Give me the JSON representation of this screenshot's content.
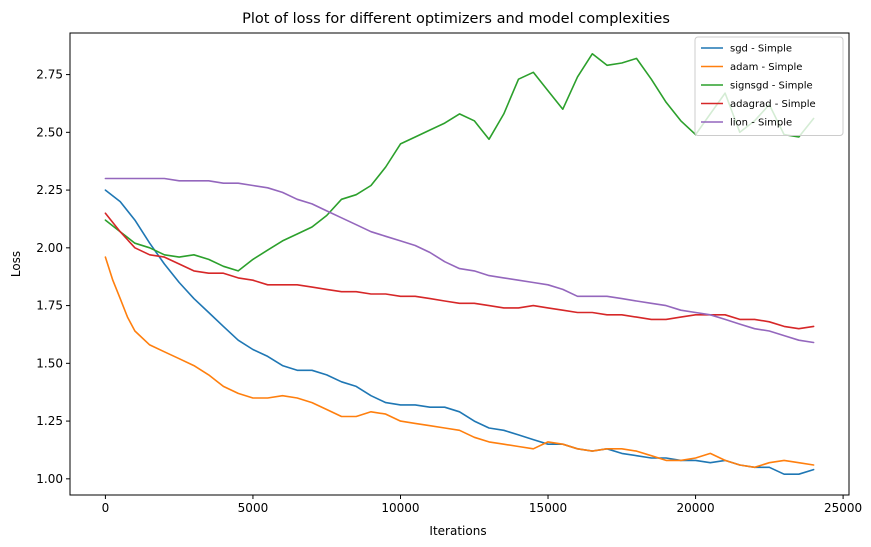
{
  "chart_data": {
    "type": "line",
    "title": "Plot of loss for different optimizers and model complexities",
    "xlabel": "Iterations",
    "ylabel": "Loss",
    "xlim": [
      -1200,
      25200
    ],
    "ylim": [
      0.93,
      2.93
    ],
    "x_ticks": [
      0,
      5000,
      10000,
      15000,
      20000,
      25000
    ],
    "x_tick_labels": [
      "0",
      "5000",
      "10000",
      "15000",
      "20000",
      "25000"
    ],
    "y_ticks": [
      1.0,
      1.25,
      1.5,
      1.75,
      2.0,
      2.25,
      2.5,
      2.75
    ],
    "y_tick_labels": [
      "1.00",
      "1.25",
      "1.50",
      "1.75",
      "2.00",
      "2.25",
      "2.50",
      "2.75"
    ],
    "grid": false,
    "legend_position": "top-right",
    "series": [
      {
        "name": "sgd - Simple",
        "color": "#1f77b4",
        "x": [
          0,
          500,
          1000,
          1500,
          2000,
          2500,
          3000,
          3500,
          4000,
          4500,
          5000,
          5500,
          6000,
          6500,
          7000,
          7500,
          8000,
          8500,
          9000,
          9500,
          10000,
          10500,
          11000,
          11500,
          12000,
          12500,
          13000,
          13500,
          14000,
          14500,
          15000,
          15500,
          16000,
          16500,
          17000,
          17500,
          18000,
          18500,
          19000,
          19500,
          20000,
          20500,
          21000,
          21500,
          22000,
          22500,
          23000,
          23500,
          24000
        ],
        "y": [
          2.25,
          2.2,
          2.12,
          2.02,
          1.93,
          1.85,
          1.78,
          1.72,
          1.66,
          1.6,
          1.56,
          1.53,
          1.49,
          1.47,
          1.47,
          1.45,
          1.42,
          1.4,
          1.36,
          1.33,
          1.32,
          1.32,
          1.31,
          1.31,
          1.29,
          1.25,
          1.22,
          1.21,
          1.19,
          1.17,
          1.15,
          1.15,
          1.13,
          1.12,
          1.13,
          1.11,
          1.1,
          1.09,
          1.09,
          1.08,
          1.08,
          1.07,
          1.08,
          1.06,
          1.05,
          1.05,
          1.02,
          1.02,
          1.04
        ]
      },
      {
        "name": "adam - Simple",
        "color": "#ff7f0e",
        "x": [
          0,
          250,
          500,
          750,
          1000,
          1500,
          2000,
          2500,
          3000,
          3500,
          4000,
          4500,
          5000,
          5500,
          6000,
          6500,
          7000,
          7500,
          8000,
          8500,
          9000,
          9500,
          10000,
          10500,
          11000,
          11500,
          12000,
          12500,
          13000,
          13500,
          14000,
          14500,
          15000,
          15500,
          16000,
          16500,
          17000,
          17500,
          18000,
          18500,
          19000,
          19500,
          20000,
          20500,
          21000,
          21500,
          22000,
          22500,
          23000,
          23500,
          24000
        ],
        "y": [
          1.96,
          1.86,
          1.78,
          1.7,
          1.64,
          1.58,
          1.55,
          1.52,
          1.49,
          1.45,
          1.4,
          1.37,
          1.35,
          1.35,
          1.36,
          1.35,
          1.33,
          1.3,
          1.27,
          1.27,
          1.29,
          1.28,
          1.25,
          1.24,
          1.23,
          1.22,
          1.21,
          1.18,
          1.16,
          1.15,
          1.14,
          1.13,
          1.16,
          1.15,
          1.13,
          1.12,
          1.13,
          1.13,
          1.12,
          1.1,
          1.08,
          1.08,
          1.09,
          1.11,
          1.08,
          1.06,
          1.05,
          1.07,
          1.08,
          1.07,
          1.06
        ]
      },
      {
        "name": "signsgd - Simple",
        "color": "#2ca02c",
        "x": [
          0,
          500,
          1000,
          1500,
          2000,
          2500,
          3000,
          3500,
          4000,
          4500,
          5000,
          5500,
          6000,
          6500,
          7000,
          7500,
          8000,
          8500,
          9000,
          9500,
          10000,
          10500,
          11000,
          11500,
          12000,
          12500,
          13000,
          13500,
          14000,
          14500,
          15000,
          15500,
          16000,
          16500,
          17000,
          17500,
          18000,
          18500,
          19000,
          19500,
          20000,
          20500,
          21000,
          21500,
          22000,
          22500,
          23000,
          23500,
          24000
        ],
        "y": [
          2.12,
          2.07,
          2.02,
          2.0,
          1.97,
          1.96,
          1.97,
          1.95,
          1.92,
          1.9,
          1.95,
          1.99,
          2.03,
          2.06,
          2.09,
          2.14,
          2.21,
          2.23,
          2.27,
          2.35,
          2.45,
          2.48,
          2.51,
          2.54,
          2.58,
          2.55,
          2.47,
          2.58,
          2.73,
          2.76,
          2.68,
          2.6,
          2.74,
          2.84,
          2.79,
          2.8,
          2.82,
          2.73,
          2.63,
          2.55,
          2.49,
          2.58,
          2.67,
          2.5,
          2.55,
          2.62,
          2.49,
          2.48,
          2.56
        ]
      },
      {
        "name": "adagrad - Simple",
        "color": "#d62728",
        "x": [
          0,
          500,
          1000,
          1500,
          2000,
          2500,
          3000,
          3500,
          4000,
          4500,
          5000,
          5500,
          6000,
          6500,
          7000,
          7500,
          8000,
          8500,
          9000,
          9500,
          10000,
          10500,
          11000,
          11500,
          12000,
          12500,
          13000,
          13500,
          14000,
          14500,
          15000,
          15500,
          16000,
          16500,
          17000,
          17500,
          18000,
          18500,
          19000,
          19500,
          20000,
          20500,
          21000,
          21500,
          22000,
          22500,
          23000,
          23500,
          24000
        ],
        "y": [
          2.15,
          2.07,
          2.0,
          1.97,
          1.96,
          1.93,
          1.9,
          1.89,
          1.89,
          1.87,
          1.86,
          1.84,
          1.84,
          1.84,
          1.83,
          1.82,
          1.81,
          1.81,
          1.8,
          1.8,
          1.79,
          1.79,
          1.78,
          1.77,
          1.76,
          1.76,
          1.75,
          1.74,
          1.74,
          1.75,
          1.74,
          1.73,
          1.72,
          1.72,
          1.71,
          1.71,
          1.7,
          1.69,
          1.69,
          1.7,
          1.71,
          1.71,
          1.71,
          1.69,
          1.69,
          1.68,
          1.66,
          1.65,
          1.66
        ]
      },
      {
        "name": "lion - Simple",
        "color": "#9467bd",
        "x": [
          0,
          500,
          1000,
          1500,
          2000,
          2500,
          3000,
          3500,
          4000,
          4500,
          5000,
          5500,
          6000,
          6500,
          7000,
          7500,
          8000,
          8500,
          9000,
          9500,
          10000,
          10500,
          11000,
          11500,
          12000,
          12500,
          13000,
          13500,
          14000,
          14500,
          15000,
          15500,
          16000,
          16500,
          17000,
          17500,
          18000,
          18500,
          19000,
          19500,
          20000,
          20500,
          21000,
          21500,
          22000,
          22500,
          23000,
          23500,
          24000
        ],
        "y": [
          2.3,
          2.3,
          2.3,
          2.3,
          2.3,
          2.29,
          2.29,
          2.29,
          2.28,
          2.28,
          2.27,
          2.26,
          2.24,
          2.21,
          2.19,
          2.16,
          2.13,
          2.1,
          2.07,
          2.05,
          2.03,
          2.01,
          1.98,
          1.94,
          1.91,
          1.9,
          1.88,
          1.87,
          1.86,
          1.85,
          1.84,
          1.82,
          1.79,
          1.79,
          1.79,
          1.78,
          1.77,
          1.76,
          1.75,
          1.73,
          1.72,
          1.71,
          1.69,
          1.67,
          1.65,
          1.64,
          1.62,
          1.6,
          1.59
        ]
      }
    ]
  }
}
